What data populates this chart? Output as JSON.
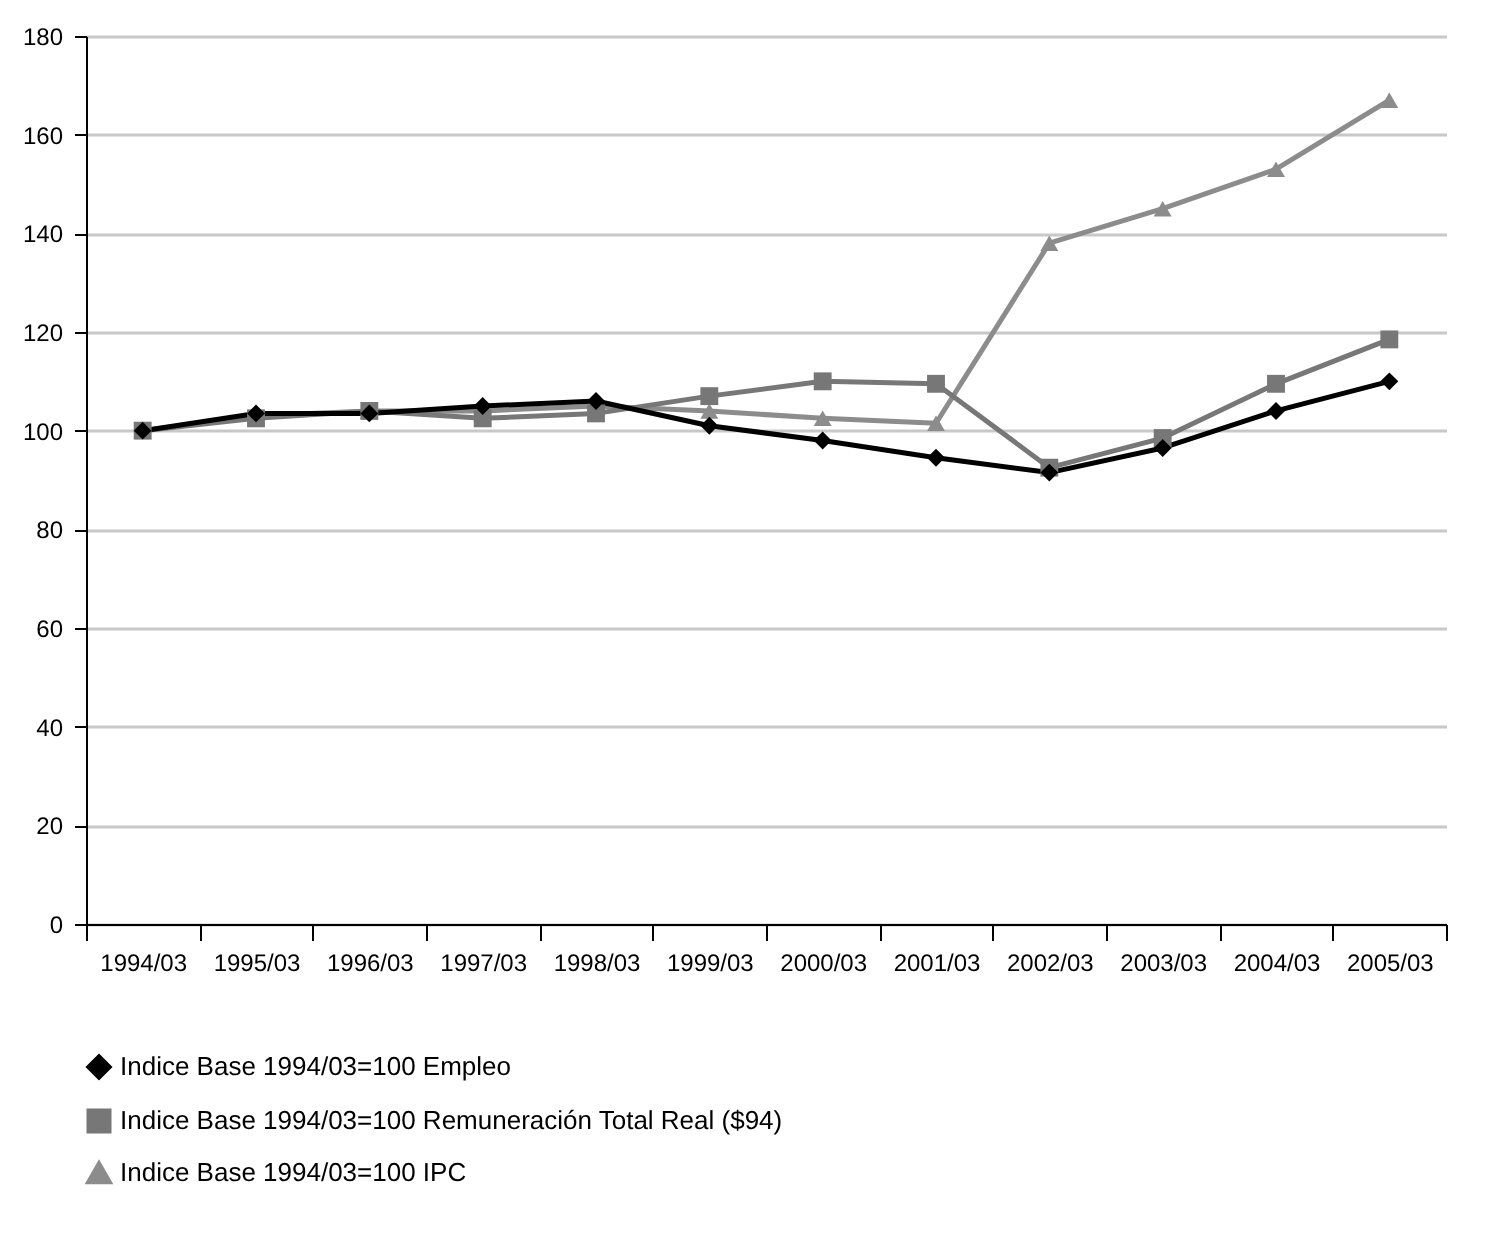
{
  "chart_data": {
    "type": "line",
    "categories": [
      "1994/03",
      "1995/03",
      "1996/03",
      "1997/03",
      "1998/03",
      "1999/03",
      "2000/03",
      "2001/03",
      "2002/03",
      "2003/03",
      "2004/03",
      "2005/03"
    ],
    "series": [
      {
        "name": "Indice Base 1994/03=100 Empleo",
        "color": "#000000",
        "marker": "diamond",
        "values": [
          100,
          103.5,
          103.5,
          105,
          106,
          101,
          98,
          94.5,
          91.5,
          96.5,
          104,
          110
        ]
      },
      {
        "name": "Indice Base 1994/03=100 Remuneración Total Real ($94)",
        "color": "#777777",
        "marker": "square",
        "values": [
          100,
          102.5,
          104,
          102.5,
          103.5,
          107,
          110,
          109.5,
          92.5,
          98.5,
          109.5,
          118.5
        ]
      },
      {
        "name": "Indice Base 1994/03=100 IPC",
        "color": "#8c8c8c",
        "marker": "triangle",
        "values": [
          100,
          103,
          104,
          104,
          105,
          104,
          102.5,
          101.5,
          138,
          145,
          153,
          167
        ]
      }
    ],
    "ylim": [
      0,
      180
    ],
    "yticks": [
      0,
      20,
      40,
      60,
      80,
      100,
      120,
      140,
      160,
      180
    ],
    "grid": "y",
    "legend": "bottom"
  }
}
